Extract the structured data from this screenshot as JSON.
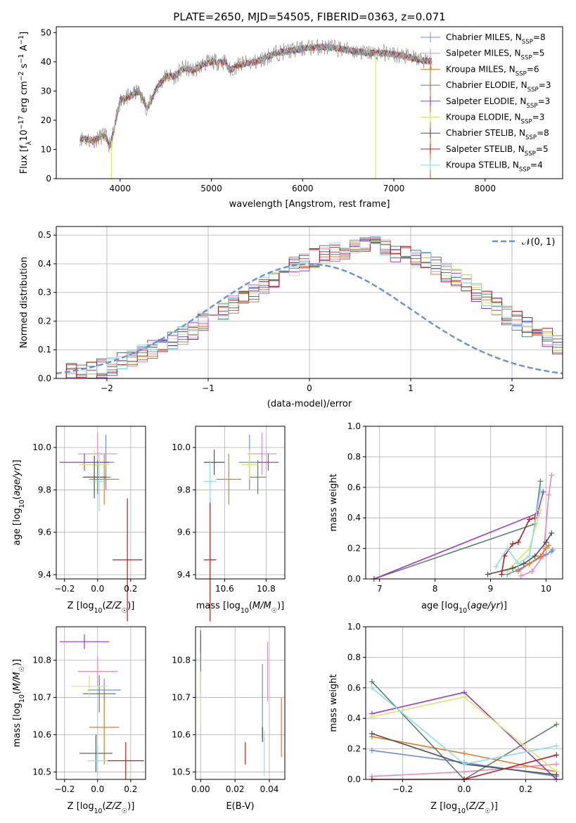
{
  "figure_title": "PLATE=2650, MJD=54505, FIBERID=0363, z=0.071",
  "colors": {
    "Chabrier MILES": "#6b8fd6",
    "Salpeter MILES": "#e98ab9",
    "Kroupa MILES": "#de7b2a",
    "Chabrier ELODIE": "#5f7f6a",
    "Salpeter ELODIE": "#9b3bbf",
    "Kroupa ELODIE": "#d6e86a",
    "Chabrier STELIB": "#505050",
    "Salpeter STELIB": "#b51d22",
    "Kroupa STELIB": "#8fdde6",
    "normal": "#6b8fd6"
  },
  "chart_data": [
    {
      "panel": "spectrum",
      "type": "line",
      "title": "PLATE=2650, MJD=54505, FIBERID=0363, z=0.071",
      "xlabel": "wavelength [Angstrom, rest frame]",
      "ylabel": "Flux [f_λ10^-17 erg cm^-2 s^-1 A^-1]",
      "xlim": [
        3300,
        8850
      ],
      "ylim": [
        0,
        52
      ],
      "xticks": [
        4000,
        5000,
        6000,
        7000,
        8000
      ],
      "yticks": [
        0,
        10,
        20,
        30,
        40,
        50
      ],
      "grid": false,
      "legend_position": "right",
      "legend": [
        {
          "label": "Chabrier MILES, N_SSP=8"
        },
        {
          "label": "Salpeter MILES, N_SSP=5"
        },
        {
          "label": "Kroupa MILES, N_SSP=6"
        },
        {
          "label": "Chabrier ELODIE, N_SSP=3"
        },
        {
          "label": "Salpeter ELODIE, N_SSP=3"
        },
        {
          "label": "Kroupa ELODIE, N_SSP=3"
        },
        {
          "label": "Chabrier STELIB, N_SSP=8"
        },
        {
          "label": "Salpeter STELIB, N_SSP=5"
        },
        {
          "label": "Kroupa STELIB, N_SSP=4"
        }
      ],
      "continuum_points": [
        [
          3560,
          14
        ],
        [
          3700,
          13
        ],
        [
          3830,
          15
        ],
        [
          3890,
          11
        ],
        [
          3950,
          19
        ],
        [
          4000,
          27
        ],
        [
          4100,
          28
        ],
        [
          4200,
          30
        ],
        [
          4300,
          24
        ],
        [
          4400,
          31
        ],
        [
          4500,
          35
        ],
        [
          4600,
          35
        ],
        [
          4700,
          38
        ],
        [
          4800,
          37
        ],
        [
          4900,
          39
        ],
        [
          5000,
          40
        ],
        [
          5150,
          40
        ],
        [
          5200,
          37
        ],
        [
          5300,
          39
        ],
        [
          5500,
          40
        ],
        [
          5700,
          43
        ],
        [
          5900,
          44
        ],
        [
          6100,
          45
        ],
        [
          6300,
          45
        ],
        [
          6500,
          44
        ],
        [
          6700,
          43
        ],
        [
          6900,
          43
        ],
        [
          7100,
          42
        ],
        [
          7400,
          40
        ]
      ],
      "spikes": [
        [
          3905,
          0
        ],
        [
          6800,
          0
        ],
        [
          7400,
          0
        ]
      ]
    },
    {
      "panel": "residuals",
      "type": "histogram",
      "xlabel": "(data-model)/error",
      "ylabel": "Normed distribution",
      "xlim": [
        -2.5,
        2.5
      ],
      "ylim": [
        0,
        0.53
      ],
      "xticks": [
        -2,
        -1,
        0,
        1,
        2
      ],
      "yticks": [
        0.0,
        0.1,
        0.2,
        0.3,
        0.4,
        0.5
      ],
      "grid": true,
      "legend": [
        {
          "label": "𝒩(0, 1)"
        }
      ],
      "bin_width": 0.1,
      "bins_start": -2.5,
      "envelope": [
        0.015,
        0.018,
        0.022,
        0.028,
        0.035,
        0.045,
        0.058,
        0.07,
        0.082,
        0.1,
        0.11,
        0.13,
        0.15,
        0.17,
        0.2,
        0.22,
        0.24,
        0.26,
        0.28,
        0.3,
        0.32,
        0.35,
        0.37,
        0.39,
        0.41,
        0.42,
        0.43,
        0.44,
        0.45,
        0.46,
        0.46,
        0.46,
        0.45,
        0.44,
        0.43,
        0.42,
        0.41,
        0.39,
        0.37,
        0.35,
        0.33,
        0.3,
        0.27,
        0.25,
        0.22,
        0.2,
        0.18,
        0.16,
        0.14,
        0.12,
        0.1
      ]
    },
    {
      "panel": "age_vs_Z",
      "type": "errorbar",
      "xlabel": "Z [log10(Z/Z☉)]",
      "ylabel": "age  [log10(age/yr)]",
      "xlim": [
        -0.25,
        0.29
      ],
      "ylim": [
        9.38,
        10.1
      ],
      "xticks": [
        -0.2,
        0.0,
        0.2
      ],
      "xtick_labels": [
        "−0.2",
        "0.0",
        "0.2"
      ],
      "yticks": [
        9.4,
        9.6,
        9.8,
        10.0
      ],
      "points": [
        {
          "series": "Chabrier MILES",
          "x": 0.05,
          "y": 9.93,
          "xerr": 0.05,
          "yerr": 0.13
        },
        {
          "series": "Salpeter MILES",
          "x": 0.0,
          "y": 9.97,
          "xerr": 0.12,
          "yerr": 0.1
        },
        {
          "series": "Kroupa MILES",
          "x": 0.04,
          "y": 9.85,
          "xerr": 0.09,
          "yerr": 0.12
        },
        {
          "series": "Chabrier ELODIE",
          "x": 0.0,
          "y": 9.86,
          "xerr": 0.08,
          "yerr": 0.08
        },
        {
          "series": "Salpeter ELODIE",
          "x": -0.08,
          "y": 9.93,
          "xerr": 0.15,
          "yerr": 0.04
        },
        {
          "series": "Kroupa ELODIE",
          "x": -0.02,
          "y": 9.92,
          "xerr": 0.09,
          "yerr": 0.07
        },
        {
          "series": "Chabrier STELIB",
          "x": -0.02,
          "y": 9.86,
          "xerr": 0.07,
          "yerr": 0.1
        },
        {
          "series": "Salpeter STELIB",
          "x": 0.18,
          "y": 9.47,
          "xerr": 0.09,
          "yerr": 0.29
        },
        {
          "series": "Kroupa STELIB",
          "x": 0.01,
          "y": 9.84,
          "xerr": 0.03,
          "yerr": 0.14
        }
      ]
    },
    {
      "panel": "age_vs_mass",
      "type": "errorbar",
      "xlabel": "mass [log10(M/M☉)]",
      "ylabel": "",
      "xlim": [
        10.46,
        10.89
      ],
      "ylim": [
        9.38,
        10.1
      ],
      "xticks": [
        10.6,
        10.8
      ],
      "yticks": [
        9.4,
        9.6,
        9.8,
        10.0
      ],
      "points": [
        {
          "series": "Chabrier MILES",
          "x": 10.72,
          "y": 9.93,
          "xerr": 0.05,
          "yerr": 0.13
        },
        {
          "series": "Salpeter MILES",
          "x": 10.78,
          "y": 9.97,
          "xerr": 0.07,
          "yerr": 0.1
        },
        {
          "series": "Kroupa MILES",
          "x": 10.62,
          "y": 9.85,
          "xerr": 0.06,
          "yerr": 0.12
        },
        {
          "series": "Chabrier ELODIE",
          "x": 10.76,
          "y": 9.86,
          "xerr": 0.04,
          "yerr": 0.08
        },
        {
          "series": "Salpeter ELODIE",
          "x": 10.81,
          "y": 9.93,
          "xerr": 0.05,
          "yerr": 0.04
        },
        {
          "series": "Kroupa ELODIE",
          "x": 10.72,
          "y": 9.92,
          "xerr": 0.04,
          "yerr": 0.07
        },
        {
          "series": "Chabrier STELIB",
          "x": 10.55,
          "y": 9.93,
          "xerr": 0.05,
          "yerr": 0.06
        },
        {
          "series": "Salpeter STELIB",
          "x": 10.53,
          "y": 9.47,
          "xerr": 0.03,
          "yerr": 0.29
        },
        {
          "series": "Kroupa STELIB",
          "x": 10.53,
          "y": 9.84,
          "xerr": 0.03,
          "yerr": 0.1
        }
      ]
    },
    {
      "panel": "weight_vs_age",
      "type": "line",
      "xlabel": "age  [log10(age/yr)]",
      "ylabel": "mass weight",
      "xlim": [
        6.75,
        10.3
      ],
      "ylim": [
        0,
        1
      ],
      "xticks": [
        7,
        8,
        9,
        10
      ],
      "yticks": [
        0.0,
        0.2,
        0.4,
        0.6,
        0.8,
        1.0
      ],
      "grid": true,
      "series": [
        {
          "series": "Chabrier MILES",
          "x": [
            9.3,
            9.5,
            9.7,
            9.9,
            10.0,
            10.1,
            10.12
          ],
          "y": [
            0.03,
            0.06,
            0.1,
            0.14,
            0.16,
            0.18,
            0.19
          ]
        },
        {
          "series": "Salpeter MILES",
          "x": [
            9.55,
            9.75,
            9.95,
            10.05,
            10.1
          ],
          "y": [
            0.02,
            0.05,
            0.15,
            0.55,
            0.68
          ]
        },
        {
          "series": "Kroupa MILES",
          "x": [
            9.5,
            9.7,
            9.9,
            10.0,
            10.05
          ],
          "y": [
            0.05,
            0.1,
            0.15,
            0.2,
            0.22
          ]
        },
        {
          "series": "Chabrier ELODIE",
          "x": [
            6.9,
            9.8,
            9.9
          ],
          "y": [
            0.0,
            0.36,
            0.64
          ]
        },
        {
          "series": "Salpeter ELODIE",
          "x": [
            6.9,
            9.85,
            9.95
          ],
          "y": [
            0.0,
            0.43,
            0.57
          ]
        },
        {
          "series": "Kroupa ELODIE",
          "x": [
            9.3,
            9.7,
            9.9
          ],
          "y": [
            0.05,
            0.2,
            0.45
          ]
        },
        {
          "series": "Chabrier STELIB",
          "x": [
            8.95,
            9.4,
            9.6,
            9.8,
            10.0,
            10.1
          ],
          "y": [
            0.03,
            0.07,
            0.1,
            0.15,
            0.24,
            0.3
          ]
        },
        {
          "series": "Salpeter STELIB",
          "x": [
            9.2,
            9.25,
            9.4,
            9.5,
            9.7,
            9.8
          ],
          "y": [
            0.03,
            0.15,
            0.23,
            0.24,
            0.39,
            0.4
          ]
        },
        {
          "series": "Kroupa STELIB",
          "x": [
            9.1,
            9.3,
            9.5,
            9.7,
            9.9
          ],
          "y": [
            0.08,
            0.2,
            0.1,
            0.15,
            0.58
          ]
        }
      ]
    },
    {
      "panel": "mass_vs_Z",
      "type": "errorbar",
      "xlabel": "Z [log10(Z/Z☉)]",
      "ylabel": "mass [log10(M/M☉)]",
      "xlim": [
        -0.25,
        0.29
      ],
      "ylim": [
        10.48,
        10.89
      ],
      "xticks": [
        -0.2,
        0.0,
        0.2
      ],
      "xtick_labels": [
        "−0.2",
        "0.0",
        "0.2"
      ],
      "yticks": [
        10.5,
        10.6,
        10.7,
        10.8
      ],
      "points": [
        {
          "series": "Chabrier MILES",
          "x": 0.04,
          "y": 10.72,
          "xerr": 0.1,
          "yerr": 0.03
        },
        {
          "series": "Salpeter MILES",
          "x": 0.0,
          "y": 10.77,
          "xerr": 0.12,
          "yerr": 0.04
        },
        {
          "series": "Kroupa MILES",
          "x": 0.04,
          "y": 10.62,
          "xerr": 0.09,
          "yerr": 0.1
        },
        {
          "series": "Chabrier ELODIE",
          "x": 0.01,
          "y": 10.71,
          "xerr": 0.1,
          "yerr": 0.05
        },
        {
          "series": "Salpeter ELODIE",
          "x": -0.08,
          "y": 10.85,
          "xerr": 0.15,
          "yerr": 0.02
        },
        {
          "series": "Kroupa ELODIE",
          "x": -0.05,
          "y": 10.73,
          "xerr": 0.11,
          "yerr": 0.03
        },
        {
          "series": "Chabrier STELIB",
          "x": -0.01,
          "y": 10.55,
          "xerr": 0.1,
          "yerr": 0.05
        },
        {
          "series": "Salpeter STELIB",
          "x": 0.17,
          "y": 10.53,
          "xerr": 0.11,
          "yerr": 0.05
        },
        {
          "series": "Kroupa STELIB",
          "x": 0.0,
          "y": 10.53,
          "xerr": 0.06,
          "yerr": 0.04
        }
      ]
    },
    {
      "panel": "mass_vs_EBV",
      "type": "errorbar",
      "xlabel": "E(B-V)",
      "ylabel": "",
      "xlim": [
        -0.003,
        0.049
      ],
      "ylim": [
        10.48,
        10.89
      ],
      "xticks": [
        0.0,
        0.02,
        0.04
      ],
      "xtick_labels": [
        "0.00",
        "0.02",
        "0.04"
      ],
      "yticks": [
        10.5,
        10.6,
        10.7,
        10.8
      ],
      "points": [
        {
          "series": "Chabrier MILES",
          "x": 0.036,
          "y": 10.69,
          "xerr": 0,
          "yerr": 0.1
        },
        {
          "series": "Salpeter MILES",
          "x": 0.039,
          "y": 10.77,
          "xerr": 0,
          "yerr": 0.08
        },
        {
          "series": "Kroupa MILES",
          "x": 0.047,
          "y": 10.62,
          "xerr": 0,
          "yerr": 0.08
        },
        {
          "series": "Chabrier ELODIE",
          "x": 0.0,
          "y": 10.79,
          "xerr": 0,
          "yerr": 0.08
        },
        {
          "series": "Salpeter ELODIE",
          "x": 0.0,
          "y": 10.85,
          "xerr": 0,
          "yerr": 0.03
        },
        {
          "series": "Kroupa ELODIE",
          "x": 0.0,
          "y": 10.7,
          "xerr": 0,
          "yerr": 0.07
        },
        {
          "series": "Chabrier STELIB",
          "x": 0.036,
          "y": 10.6,
          "xerr": 0,
          "yerr": 0.02
        },
        {
          "series": "Salpeter STELIB",
          "x": 0.026,
          "y": 10.55,
          "xerr": 0,
          "yerr": 0.03
        },
        {
          "series": "Kroupa STELIB",
          "x": 0.037,
          "y": 10.55,
          "xerr": 0,
          "yerr": 0.06
        }
      ]
    },
    {
      "panel": "weight_vs_Z",
      "type": "line",
      "xlabel": "Z [log10(Z/Z☉)]",
      "ylabel": "mass weight",
      "xlim": [
        -0.32,
        0.32
      ],
      "ylim": [
        0,
        1
      ],
      "xticks": [
        -0.2,
        0.0,
        0.2
      ],
      "xtick_labels": [
        "−0.2",
        "0.0",
        "0.2"
      ],
      "yticks": [
        0.0,
        0.2,
        0.4,
        0.6,
        0.8,
        1.0
      ],
      "grid": true,
      "series": [
        {
          "series": "Chabrier MILES",
          "x": [
            -0.3,
            0.0,
            0.3
          ],
          "y": [
            0.19,
            0.11,
            0.02
          ]
        },
        {
          "series": "Salpeter MILES",
          "x": [
            -0.3,
            0.0,
            0.3
          ],
          "y": [
            0.02,
            0.05,
            0.1
          ]
        },
        {
          "series": "Kroupa MILES",
          "x": [
            -0.3,
            0.0,
            0.3
          ],
          "y": [
            0.28,
            0.17,
            0.05
          ]
        },
        {
          "series": "Chabrier ELODIE",
          "x": [
            -0.3,
            0.0,
            0.3
          ],
          "y": [
            0.64,
            0.0,
            0.36
          ]
        },
        {
          "series": "Salpeter ELODIE",
          "x": [
            -0.3,
            0.0,
            0.3
          ],
          "y": [
            0.43,
            0.57,
            0.0
          ]
        },
        {
          "series": "Kroupa ELODIE",
          "x": [
            -0.3,
            0.0,
            0.3
          ],
          "y": [
            0.41,
            0.54,
            0.05
          ]
        },
        {
          "series": "Chabrier STELIB",
          "x": [
            -0.3,
            0.0,
            0.3
          ],
          "y": [
            0.3,
            0.1,
            0.03
          ]
        },
        {
          "series": "Salpeter STELIB",
          "x": [
            -0.3,
            0.0,
            0.3
          ],
          "y": [
            0.0,
            0.0,
            0.16
          ]
        },
        {
          "series": "Kroupa STELIB",
          "x": [
            -0.3,
            0.0,
            0.3
          ],
          "y": [
            0.6,
            0.1,
            0.22
          ]
        }
      ]
    }
  ]
}
